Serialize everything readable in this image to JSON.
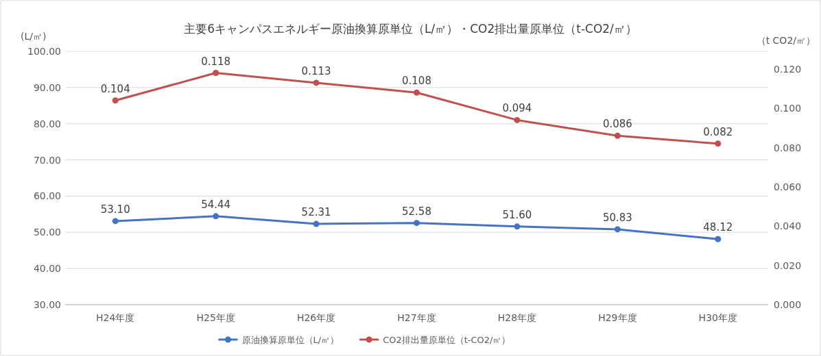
{
  "chart_data": {
    "type": "line",
    "title": "主要6キャンパスエネルギー原油換算原単位（L/㎡）・CO2排出量原単位（t-CO2/㎡）",
    "ylabel": "(L/㎡)",
    "y2label": "（t CO2/㎡）",
    "categories": [
      "H24年度",
      "H25年度",
      "H26年度",
      "H27年度",
      "H28年度",
      "H29年度",
      "H30年度"
    ],
    "series": [
      {
        "name": "原油換算原単位（L/㎡）",
        "color": "#4472c4",
        "values": [
          53.1,
          54.44,
          52.31,
          52.58,
          51.6,
          50.83,
          48.12
        ],
        "value_labels": [
          "53.10",
          "54.44",
          "52.31",
          "52.58",
          "51.60",
          "50.83",
          "48.12"
        ]
      },
      {
        "name": "CO2排出量原単位（t-CO2/㎡）",
        "color": "#c0504d",
        "axis": "y2",
        "values": [
          0.104,
          0.118,
          0.113,
          0.108,
          0.094,
          0.086,
          0.082
        ],
        "value_labels": [
          "0.104",
          "0.118",
          "0.113",
          "0.108",
          "0.094",
          "0.086",
          "0.082"
        ]
      }
    ],
    "ylim": [
      30,
      100
    ],
    "yticks": [
      {
        "value": 30,
        "label": "30.00"
      },
      {
        "value": 40,
        "label": "40.00"
      },
      {
        "value": 50,
        "label": "50.00"
      },
      {
        "value": 60,
        "label": "60.00"
      },
      {
        "value": 70,
        "label": "70.00"
      },
      {
        "value": 80,
        "label": "80.00"
      },
      {
        "value": 90,
        "label": "90.00"
      },
      {
        "value": 100,
        "label": "100.00"
      }
    ],
    "y2lim": [
      0,
      0.129
    ],
    "y2ticks": [
      {
        "value": 0,
        "label": "0.000"
      },
      {
        "value": 0.02,
        "label": "0.020"
      },
      {
        "value": 0.04,
        "label": "0.040"
      },
      {
        "value": 0.06,
        "label": "0.060"
      },
      {
        "value": 0.08,
        "label": "0.080"
      },
      {
        "value": 0.1,
        "label": "0.100"
      },
      {
        "value": 0.12,
        "label": "0.120"
      }
    ],
    "grid": "y",
    "legend": "bottom",
    "marker": "circle",
    "line_style": "solid"
  }
}
